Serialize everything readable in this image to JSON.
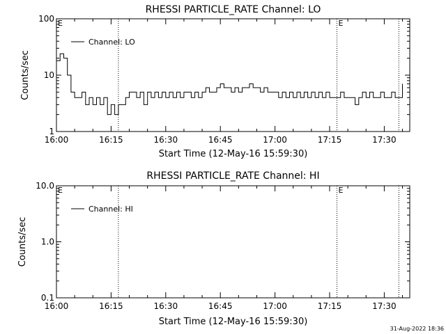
{
  "footer": {
    "timestamp": "31-Aug-2022 18:36"
  },
  "chart_data": [
    {
      "type": "line",
      "title": "RHESSI PARTICLE_RATE Channel: LO",
      "ylabel": "Counts/sec",
      "xlabel": "Start Time (12-May-16 15:59:30)",
      "y_scale": "log",
      "ylim": [
        1,
        100
      ],
      "y_ticks": [
        1,
        10,
        100
      ],
      "y_tick_labels": [
        "1",
        "10",
        "100"
      ],
      "xlim": [
        "16:00",
        "17:37"
      ],
      "x_ticks": [
        "16:00",
        "16:15",
        "16:30",
        "16:45",
        "17:00",
        "17:15",
        "17:30"
      ],
      "x_tick_labels": [
        "16:00",
        "16:15",
        "16:30",
        "16:45",
        "17:00",
        "17:15",
        "17:30"
      ],
      "legend": {
        "entries": [
          "Channel: LO"
        ],
        "placement": "top-left"
      },
      "event_lines": [
        "16:17",
        "17:17",
        "17:34"
      ],
      "event_labels": [
        {
          "text": "E",
          "at": "16:00"
        },
        {
          "text": "E",
          "at": "17:17"
        }
      ],
      "series": [
        {
          "points": [
            [
              "16:00",
              18
            ],
            [
              "16:01",
              24
            ],
            [
              "16:02",
              20
            ],
            [
              "16:03",
              10
            ],
            [
              "16:04",
              5
            ],
            [
              "16:05",
              4
            ],
            [
              "16:06",
              4
            ],
            [
              "16:07",
              5
            ],
            [
              "16:08",
              3
            ],
            [
              "16:09",
              4
            ],
            [
              "16:10",
              3
            ],
            [
              "16:11",
              4
            ],
            [
              "16:12",
              3
            ],
            [
              "16:13",
              4
            ],
            [
              "16:14",
              2
            ],
            [
              "16:15",
              3
            ],
            [
              "16:16",
              2
            ],
            [
              "16:17",
              3
            ],
            [
              "16:18",
              3
            ],
            [
              "16:19",
              4
            ],
            [
              "16:20",
              5
            ],
            [
              "16:21",
              5
            ],
            [
              "16:22",
              4
            ],
            [
              "16:23",
              5
            ],
            [
              "16:24",
              3
            ],
            [
              "16:25",
              5
            ],
            [
              "16:26",
              4
            ],
            [
              "16:27",
              5
            ],
            [
              "16:28",
              4
            ],
            [
              "16:29",
              5
            ],
            [
              "16:30",
              4
            ],
            [
              "16:31",
              5
            ],
            [
              "16:32",
              4
            ],
            [
              "16:33",
              5
            ],
            [
              "16:34",
              4
            ],
            [
              "16:35",
              5
            ],
            [
              "16:36",
              5
            ],
            [
              "16:37",
              4
            ],
            [
              "16:38",
              5
            ],
            [
              "16:39",
              4
            ],
            [
              "16:40",
              5
            ],
            [
              "16:41",
              6
            ],
            [
              "16:42",
              5
            ],
            [
              "16:43",
              5
            ],
            [
              "16:44",
              6
            ],
            [
              "16:45",
              7
            ],
            [
              "16:46",
              6
            ],
            [
              "16:47",
              6
            ],
            [
              "16:48",
              5
            ],
            [
              "16:49",
              6
            ],
            [
              "16:50",
              5
            ],
            [
              "16:51",
              6
            ],
            [
              "16:52",
              6
            ],
            [
              "16:53",
              7
            ],
            [
              "16:54",
              6
            ],
            [
              "16:55",
              6
            ],
            [
              "16:56",
              5
            ],
            [
              "16:57",
              6
            ],
            [
              "16:58",
              5
            ],
            [
              "16:59",
              5
            ],
            [
              "17:00",
              5
            ],
            [
              "17:01",
              4
            ],
            [
              "17:02",
              5
            ],
            [
              "17:03",
              4
            ],
            [
              "17:04",
              5
            ],
            [
              "17:05",
              4
            ],
            [
              "17:06",
              5
            ],
            [
              "17:07",
              4
            ],
            [
              "17:08",
              5
            ],
            [
              "17:09",
              4
            ],
            [
              "17:10",
              5
            ],
            [
              "17:11",
              4
            ],
            [
              "17:12",
              5
            ],
            [
              "17:13",
              4
            ],
            [
              "17:14",
              5
            ],
            [
              "17:15",
              4
            ],
            [
              "17:16",
              4
            ],
            [
              "17:17",
              4
            ],
            [
              "17:18",
              5
            ],
            [
              "17:19",
              4
            ],
            [
              "17:20",
              4
            ],
            [
              "17:21",
              4
            ],
            [
              "17:22",
              3
            ],
            [
              "17:23",
              4
            ],
            [
              "17:24",
              5
            ],
            [
              "17:25",
              4
            ],
            [
              "17:26",
              5
            ],
            [
              "17:27",
              4
            ],
            [
              "17:28",
              4
            ],
            [
              "17:29",
              5
            ],
            [
              "17:30",
              4
            ],
            [
              "17:31",
              4
            ],
            [
              "17:32",
              5
            ],
            [
              "17:33",
              4
            ],
            [
              "17:34",
              4
            ],
            [
              "17:35",
              7
            ]
          ]
        }
      ]
    },
    {
      "type": "line",
      "title": "RHESSI PARTICLE_RATE Channel: HI",
      "ylabel": "Counts/sec",
      "xlabel": "Start Time (12-May-16 15:59:30)",
      "y_scale": "log",
      "ylim": [
        0.1,
        10
      ],
      "y_ticks": [
        0.1,
        1,
        10
      ],
      "y_tick_labels": [
        "0.1",
        "1.0",
        "10.0"
      ],
      "xlim": [
        "16:00",
        "17:37"
      ],
      "x_ticks": [
        "16:00",
        "16:15",
        "16:30",
        "16:45",
        "17:00",
        "17:15",
        "17:30"
      ],
      "x_tick_labels": [
        "16:00",
        "16:15",
        "16:30",
        "16:45",
        "17:00",
        "17:15",
        "17:30"
      ],
      "legend": {
        "entries": [
          "Channel: HI"
        ],
        "placement": "top-left"
      },
      "event_lines": [
        "16:17",
        "17:17",
        "17:34"
      ],
      "event_labels": [
        {
          "text": "E",
          "at": "16:00"
        },
        {
          "text": "E",
          "at": "17:17"
        }
      ],
      "series": [
        {
          "points": []
        }
      ]
    }
  ]
}
